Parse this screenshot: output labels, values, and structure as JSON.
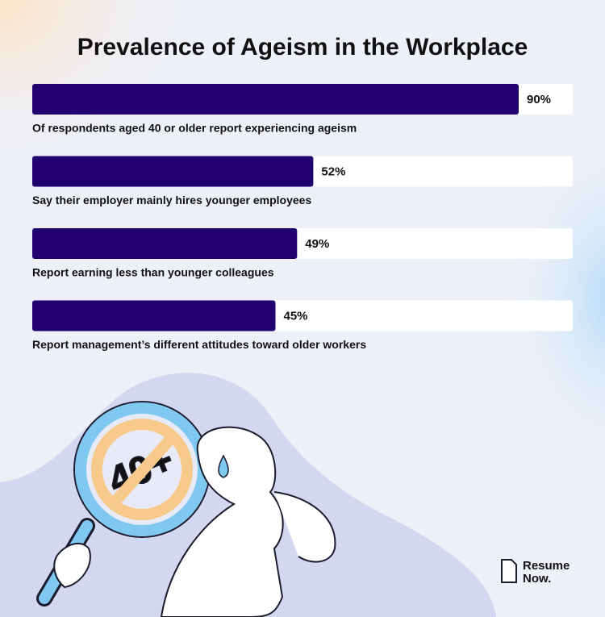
{
  "chart_data": {
    "type": "bar",
    "orientation": "horizontal",
    "title": "Prevalence of Ageism in the Workplace",
    "categories": [
      "Of respondents aged 40 or older report experiencing ageism",
      "Say their employer mainly hires younger employees",
      "Report earning less than younger colleagues",
      "Report management’s different attitudes toward older workers"
    ],
    "values": [
      90,
      52,
      49,
      45
    ],
    "value_labels": [
      "90%",
      "52%",
      "49%",
      "45%"
    ],
    "color": "#21006f",
    "xlim": [
      0,
      100
    ]
  },
  "illustration_text": "40+",
  "logo": [
    "Resume",
    "Now."
  ]
}
